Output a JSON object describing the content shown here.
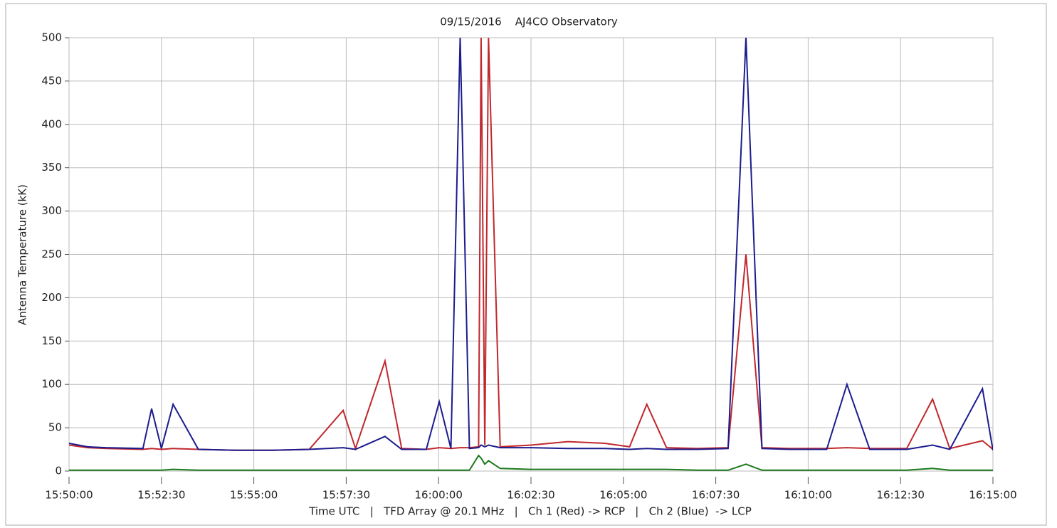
{
  "chart_data": {
    "type": "line",
    "title": "09/15/2016    AJ4CO Observatory",
    "x_label": "Time UTC   |   TFD Array @ 20.1 MHz   |   Ch 1 (Red) -> RCP   |   Ch 2 (Blue)  -> LCP",
    "y_label": "Antenna Temperature (kK)",
    "x": [
      "15:50:00",
      "15:50:30",
      "15:51:00",
      "15:52:00",
      "15:52:14",
      "15:52:30",
      "15:52:49",
      "15:53:30",
      "15:54:30",
      "15:55:30",
      "15:56:30",
      "15:57:25",
      "15:57:45",
      "15:58:33",
      "15:59:00",
      "15:59:40",
      "16:00:01",
      "16:00:20",
      "16:00:35",
      "16:00:50",
      "16:01:05",
      "16:01:09",
      "16:01:15",
      "16:01:21",
      "16:01:40",
      "16:02:30",
      "16:03:30",
      "16:04:30",
      "16:05:10",
      "16:05:38",
      "16:06:10",
      "16:07:00",
      "16:07:50",
      "16:08:19",
      "16:08:45",
      "16:09:30",
      "16:10:30",
      "16:11:03",
      "16:11:40",
      "16:12:40",
      "16:13:22",
      "16:13:50",
      "16:14:43",
      "16:15:00"
    ],
    "series": [
      {
        "color": "#c0282d",
        "values": [
          30,
          27,
          26,
          25,
          26,
          25,
          26,
          25,
          24,
          24,
          25,
          70,
          26,
          127,
          26,
          25,
          27,
          26,
          27,
          27,
          28,
          500,
          30,
          500,
          28,
          30,
          34,
          32,
          28,
          77,
          27,
          26,
          27,
          250,
          27,
          26,
          26,
          27,
          26,
          26,
          83,
          26,
          35,
          25
        ]
      },
      {
        "color": "#1c1c8e",
        "values": [
          32,
          28,
          27,
          26,
          72,
          26,
          77,
          25,
          24,
          24,
          25,
          27,
          25,
          40,
          25,
          25,
          80,
          26,
          500,
          26,
          27,
          30,
          28,
          30,
          27,
          27,
          26,
          26,
          25,
          26,
          25,
          25,
          26,
          500,
          26,
          25,
          25,
          100,
          25,
          25,
          30,
          25,
          95,
          24
        ]
      },
      {
        "color": "#1a7a1a",
        "values": [
          1,
          1,
          1,
          1,
          1,
          1,
          2,
          1,
          1,
          1,
          1,
          1,
          1,
          1,
          1,
          1,
          1,
          1,
          1,
          1,
          18,
          15,
          8,
          12,
          3,
          2,
          2,
          2,
          2,
          2,
          2,
          1,
          1,
          8,
          1,
          1,
          1,
          1,
          1,
          1,
          3,
          1,
          1,
          1
        ]
      }
    ],
    "xlim": [
      "15:50:00",
      "16:15:00"
    ],
    "xticks": [
      "15:50:00",
      "15:52:30",
      "15:55:00",
      "15:57:30",
      "16:00:00",
      "16:02:30",
      "16:05:00",
      "16:07:30",
      "16:10:00",
      "16:12:30",
      "16:15:00"
    ],
    "ylim": [
      0,
      500
    ],
    "yticks": [
      0,
      50,
      100,
      150,
      200,
      250,
      300,
      350,
      400,
      450,
      500
    ],
    "grid": true
  }
}
